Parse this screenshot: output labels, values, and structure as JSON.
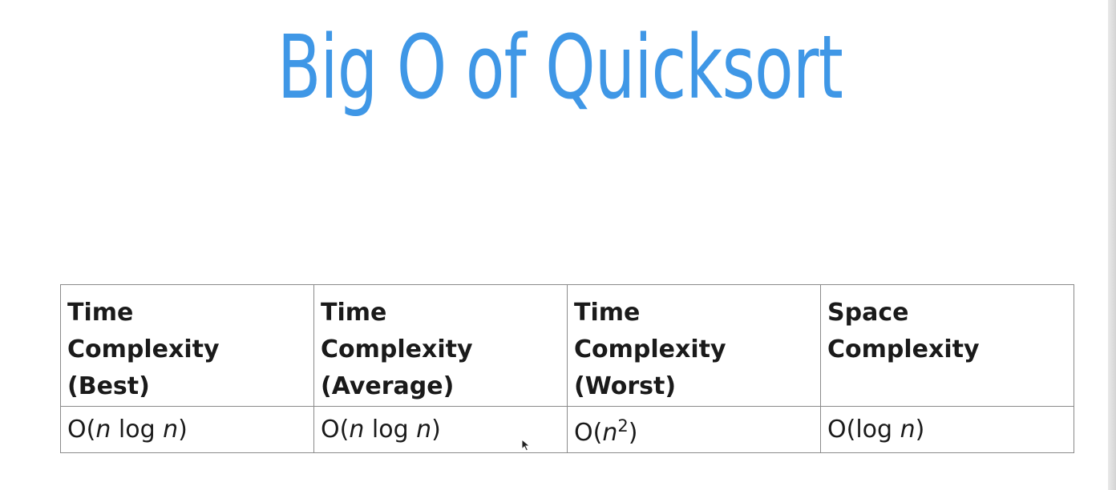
{
  "slide": {
    "title": "Big O of Quicksort",
    "title_color": "#3f97e6"
  },
  "table": {
    "columns": [
      {
        "header_lines": [
          "Time",
          "Complexity",
          "(Best)"
        ],
        "value": {
          "pre": "O(",
          "n1": "n",
          "mid": " log ",
          "n2": "n",
          "post": ")"
        }
      },
      {
        "header_lines": [
          "Time",
          "Complexity",
          "(Average)"
        ],
        "value": {
          "pre": "O(",
          "n1": "n",
          "mid": " log ",
          "n2": "n",
          "post": ")"
        }
      },
      {
        "header_lines": [
          "Time",
          "Complexity",
          "(Worst)"
        ],
        "value": {
          "pre": "O(",
          "n1": "n",
          "exp": "2",
          "post": ")"
        }
      },
      {
        "header_lines": [
          "Space",
          "Complexity"
        ],
        "value": {
          "pre": "O(log ",
          "n1": "n",
          "post": ")"
        }
      }
    ]
  },
  "cursor": {
    "icon": "mouse-pointer-icon"
  }
}
